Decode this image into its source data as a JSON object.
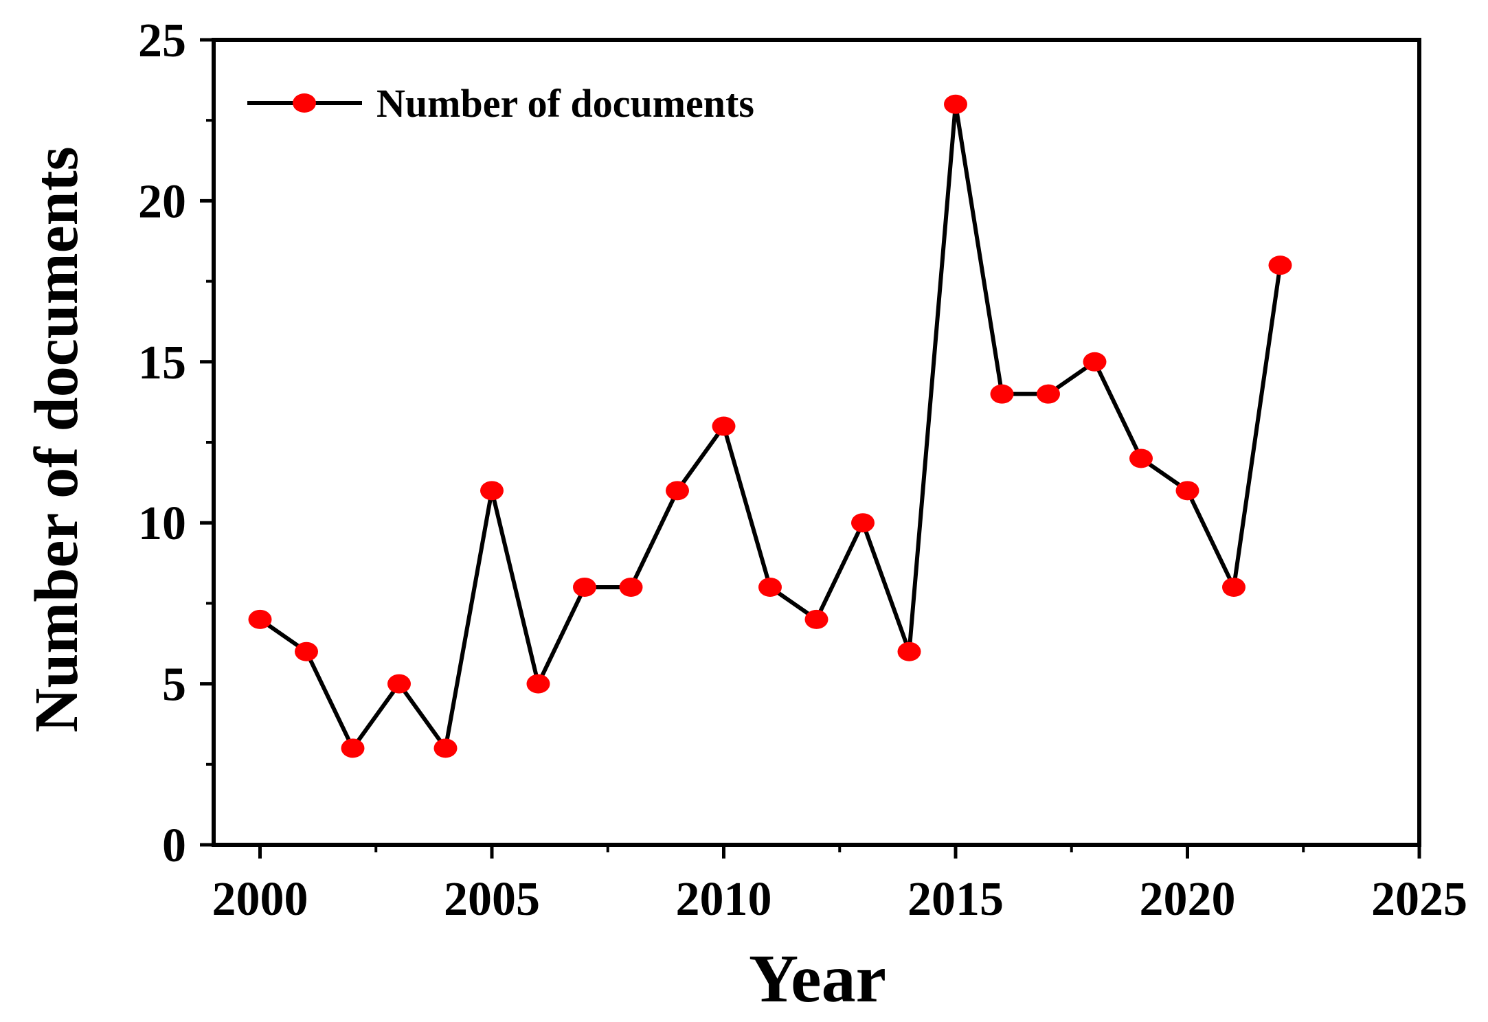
{
  "chart_data": {
    "type": "line",
    "xlabel": "Year",
    "ylabel": "Number of documents",
    "xlim": [
      1999,
      2025
    ],
    "ylim": [
      0,
      25
    ],
    "x_ticks": [
      2000,
      2005,
      2010,
      2015,
      2020,
      2025
    ],
    "y_ticks": [
      0,
      5,
      10,
      15,
      20,
      25
    ],
    "grid": false,
    "legend_position": "top-left",
    "series": [
      {
        "name": "Number of documents",
        "line_color": "#000000",
        "marker_color": "#ff0000",
        "x": [
          2000,
          2001,
          2002,
          2003,
          2004,
          2005,
          2006,
          2007,
          2008,
          2009,
          2010,
          2011,
          2012,
          2013,
          2014,
          2015,
          2016,
          2017,
          2018,
          2019,
          2020,
          2021,
          2022
        ],
        "y": [
          7,
          6,
          3,
          5,
          3,
          11,
          5,
          8,
          8,
          11,
          13,
          8,
          7,
          10,
          6,
          23,
          14,
          14,
          15,
          12,
          11,
          8,
          18
        ]
      }
    ]
  }
}
